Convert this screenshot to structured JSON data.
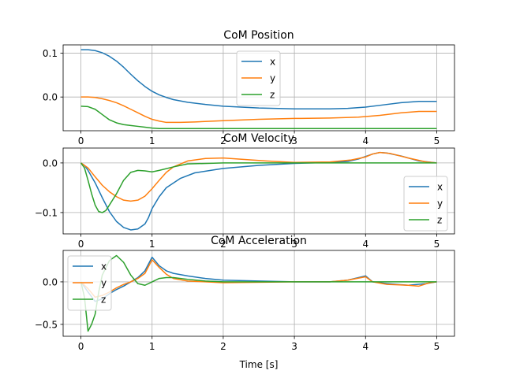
{
  "chart_data": [
    {
      "type": "line",
      "title": "CoM Position",
      "xlabel": "",
      "ylabel": "",
      "xlim": [
        -0.25,
        5.25
      ],
      "ylim": [
        -0.077,
        0.119
      ],
      "xticks": [
        0,
        1,
        2,
        3,
        4,
        5
      ],
      "yticks": [
        0.1,
        0.0
      ],
      "ytick_labels": [
        "0.1",
        "0.0"
      ],
      "grid": true,
      "legend": {
        "location": "upper-center",
        "entries": [
          "x",
          "y",
          "z"
        ]
      },
      "series": [
        {
          "name": "x",
          "color": "#1f77b4",
          "points": [
            [
              0,
              0.108
            ],
            [
              0.1,
              0.108
            ],
            [
              0.2,
              0.106
            ],
            [
              0.3,
              0.101
            ],
            [
              0.4,
              0.093
            ],
            [
              0.5,
              0.082
            ],
            [
              0.6,
              0.068
            ],
            [
              0.7,
              0.052
            ],
            [
              0.8,
              0.037
            ],
            [
              0.9,
              0.024
            ],
            [
              1.0,
              0.013
            ],
            [
              1.1,
              0.005
            ],
            [
              1.2,
              -0.001
            ],
            [
              1.3,
              -0.006
            ],
            [
              1.5,
              -0.012
            ],
            [
              1.75,
              -0.017
            ],
            [
              2.0,
              -0.021
            ],
            [
              2.5,
              -0.025
            ],
            [
              3.0,
              -0.027
            ],
            [
              3.5,
              -0.027
            ],
            [
              3.75,
              -0.026
            ],
            [
              4.0,
              -0.023
            ],
            [
              4.25,
              -0.018
            ],
            [
              4.5,
              -0.013
            ],
            [
              4.75,
              -0.01
            ],
            [
              5.0,
              -0.01
            ]
          ]
        },
        {
          "name": "y",
          "color": "#ff7f0e",
          "points": [
            [
              0,
              0.0
            ],
            [
              0.1,
              0.0
            ],
            [
              0.2,
              -0.001
            ],
            [
              0.3,
              -0.004
            ],
            [
              0.4,
              -0.008
            ],
            [
              0.5,
              -0.013
            ],
            [
              0.6,
              -0.02
            ],
            [
              0.7,
              -0.028
            ],
            [
              0.8,
              -0.036
            ],
            [
              0.9,
              -0.044
            ],
            [
              1.0,
              -0.051
            ],
            [
              1.1,
              -0.055
            ],
            [
              1.2,
              -0.058
            ],
            [
              1.4,
              -0.058
            ],
            [
              1.6,
              -0.057
            ],
            [
              2.0,
              -0.054
            ],
            [
              2.5,
              -0.051
            ],
            [
              3.0,
              -0.049
            ],
            [
              3.5,
              -0.048
            ],
            [
              3.9,
              -0.046
            ],
            [
              4.2,
              -0.042
            ],
            [
              4.5,
              -0.036
            ],
            [
              4.75,
              -0.033
            ],
            [
              5.0,
              -0.033
            ]
          ]
        },
        {
          "name": "z",
          "color": "#2ca02c",
          "points": [
            [
              0,
              -0.021
            ],
            [
              0.1,
              -0.022
            ],
            [
              0.2,
              -0.028
            ],
            [
              0.3,
              -0.04
            ],
            [
              0.4,
              -0.052
            ],
            [
              0.5,
              -0.059
            ],
            [
              0.6,
              -0.063
            ],
            [
              0.7,
              -0.065
            ],
            [
              0.8,
              -0.067
            ],
            [
              0.9,
              -0.069
            ],
            [
              1.0,
              -0.071
            ],
            [
              1.1,
              -0.072
            ],
            [
              1.2,
              -0.072
            ],
            [
              1.5,
              -0.072
            ],
            [
              2.0,
              -0.072
            ],
            [
              3.0,
              -0.072
            ],
            [
              4.0,
              -0.072
            ],
            [
              5.0,
              -0.072
            ]
          ]
        }
      ]
    },
    {
      "type": "line",
      "title": "CoM Velocity",
      "xlabel": "",
      "ylabel": "",
      "xlim": [
        -0.25,
        5.25
      ],
      "ylim": [
        -0.143,
        0.03
      ],
      "xticks": [
        0,
        1,
        2,
        3,
        4,
        5
      ],
      "yticks": [
        0.0,
        -0.1
      ],
      "ytick_labels": [
        "0.0",
        "−0.1"
      ],
      "grid": true,
      "legend": {
        "location": "lower-right",
        "entries": [
          "x",
          "y",
          "z"
        ]
      },
      "series": [
        {
          "name": "x",
          "color": "#1f77b4",
          "points": [
            [
              0,
              0.0
            ],
            [
              0.05,
              -0.005
            ],
            [
              0.1,
              -0.015
            ],
            [
              0.2,
              -0.04
            ],
            [
              0.3,
              -0.07
            ],
            [
              0.4,
              -0.098
            ],
            [
              0.5,
              -0.118
            ],
            [
              0.6,
              -0.13
            ],
            [
              0.7,
              -0.135
            ],
            [
              0.8,
              -0.133
            ],
            [
              0.9,
              -0.123
            ],
            [
              0.95,
              -0.11
            ],
            [
              1.0,
              -0.092
            ],
            [
              1.1,
              -0.068
            ],
            [
              1.2,
              -0.05
            ],
            [
              1.4,
              -0.031
            ],
            [
              1.6,
              -0.02
            ],
            [
              2.0,
              -0.011
            ],
            [
              2.5,
              -0.005
            ],
            [
              3.0,
              -0.001
            ],
            [
              3.5,
              0.001
            ],
            [
              3.75,
              0.003
            ],
            [
              3.9,
              0.008
            ],
            [
              4.0,
              0.013
            ],
            [
              4.1,
              0.018
            ],
            [
              4.2,
              0.021
            ],
            [
              4.3,
              0.02
            ],
            [
              4.5,
              0.014
            ],
            [
              4.75,
              0.004
            ],
            [
              5.0,
              0.0
            ]
          ]
        },
        {
          "name": "y",
          "color": "#ff7f0e",
          "points": [
            [
              0,
              0.0
            ],
            [
              0.1,
              -0.01
            ],
            [
              0.2,
              -0.028
            ],
            [
              0.3,
              -0.045
            ],
            [
              0.4,
              -0.058
            ],
            [
              0.5,
              -0.068
            ],
            [
              0.6,
              -0.075
            ],
            [
              0.7,
              -0.077
            ],
            [
              0.8,
              -0.075
            ],
            [
              0.9,
              -0.067
            ],
            [
              1.0,
              -0.052
            ],
            [
              1.1,
              -0.035
            ],
            [
              1.2,
              -0.019
            ],
            [
              1.3,
              -0.008
            ],
            [
              1.5,
              0.004
            ],
            [
              1.75,
              0.009
            ],
            [
              2.0,
              0.01
            ],
            [
              2.3,
              0.007
            ],
            [
              2.6,
              0.004
            ],
            [
              3.0,
              0.001
            ],
            [
              3.5,
              0.002
            ],
            [
              3.8,
              0.006
            ],
            [
              4.0,
              0.012
            ],
            [
              4.1,
              0.018
            ],
            [
              4.2,
              0.021
            ],
            [
              4.35,
              0.019
            ],
            [
              4.6,
              0.01
            ],
            [
              4.85,
              0.002
            ],
            [
              5.0,
              0.0
            ]
          ]
        },
        {
          "name": "z",
          "color": "#2ca02c",
          "points": [
            [
              0,
              0.0
            ],
            [
              0.05,
              -0.01
            ],
            [
              0.1,
              -0.035
            ],
            [
              0.15,
              -0.062
            ],
            [
              0.2,
              -0.085
            ],
            [
              0.25,
              -0.098
            ],
            [
              0.3,
              -0.1
            ],
            [
              0.35,
              -0.096
            ],
            [
              0.4,
              -0.085
            ],
            [
              0.5,
              -0.062
            ],
            [
              0.6,
              -0.035
            ],
            [
              0.7,
              -0.019
            ],
            [
              0.8,
              -0.015
            ],
            [
              0.9,
              -0.016
            ],
            [
              1.0,
              -0.018
            ],
            [
              1.1,
              -0.015
            ],
            [
              1.3,
              -0.008
            ],
            [
              1.5,
              -0.002
            ],
            [
              2.0,
              0.0
            ],
            [
              5.0,
              0.0
            ]
          ]
        }
      ]
    },
    {
      "type": "line",
      "title": "CoM Acceleration",
      "xlabel": "Time [s]",
      "ylabel": "",
      "xlim": [
        -0.25,
        5.25
      ],
      "ylim": [
        -0.64,
        0.37
      ],
      "xticks": [
        0,
        1,
        2,
        3,
        4,
        5
      ],
      "xtick_labels": [
        "0",
        "1",
        "2",
        "3",
        "4",
        "5"
      ],
      "yticks": [
        0.0,
        -0.5
      ],
      "ytick_labels": [
        "0.0",
        "−0.5"
      ],
      "grid": true,
      "legend": {
        "location": "upper-left",
        "entries": [
          "x",
          "y",
          "z"
        ]
      },
      "series": [
        {
          "name": "x",
          "color": "#1f77b4",
          "points": [
            [
              0,
              0.0
            ],
            [
              0.1,
              -0.12
            ],
            [
              0.2,
              -0.23
            ],
            [
              0.3,
              -0.2
            ],
            [
              0.4,
              -0.14
            ],
            [
              0.5,
              -0.09
            ],
            [
              0.6,
              -0.05
            ],
            [
              0.7,
              0.0
            ],
            [
              0.8,
              0.05
            ],
            [
              0.9,
              0.13
            ],
            [
              1.0,
              0.29
            ],
            [
              1.1,
              0.19
            ],
            [
              1.2,
              0.13
            ],
            [
              1.3,
              0.1
            ],
            [
              1.5,
              0.07
            ],
            [
              1.75,
              0.04
            ],
            [
              2.0,
              0.02
            ],
            [
              2.5,
              0.01
            ],
            [
              3.0,
              0.0
            ],
            [
              3.5,
              0.0
            ],
            [
              3.75,
              0.02
            ],
            [
              4.0,
              0.07
            ],
            [
              4.1,
              0.0
            ],
            [
              4.3,
              -0.02
            ],
            [
              4.6,
              -0.04
            ],
            [
              4.85,
              -0.02
            ],
            [
              5.0,
              0.0
            ]
          ]
        },
        {
          "name": "y",
          "color": "#ff7f0e",
          "points": [
            [
              0,
              0.0
            ],
            [
              0.1,
              -0.08
            ],
            [
              0.2,
              -0.18
            ],
            [
              0.3,
              -0.16
            ],
            [
              0.4,
              -0.12
            ],
            [
              0.5,
              -0.07
            ],
            [
              0.6,
              -0.03
            ],
            [
              0.7,
              0.0
            ],
            [
              0.8,
              0.04
            ],
            [
              0.9,
              0.1
            ],
            [
              1.0,
              0.26
            ],
            [
              1.1,
              0.17
            ],
            [
              1.2,
              0.09
            ],
            [
              1.3,
              0.04
            ],
            [
              1.5,
              0.01
            ],
            [
              1.75,
              0.0
            ],
            [
              2.0,
              -0.01
            ],
            [
              3.0,
              0.0
            ],
            [
              3.5,
              0.0
            ],
            [
              3.75,
              0.02
            ],
            [
              4.0,
              0.06
            ],
            [
              4.1,
              0.0
            ],
            [
              4.3,
              -0.03
            ],
            [
              4.6,
              -0.04
            ],
            [
              4.75,
              -0.05
            ],
            [
              4.9,
              -0.01
            ],
            [
              5.0,
              0.0
            ]
          ]
        },
        {
          "name": "z",
          "color": "#2ca02c",
          "points": [
            [
              0,
              0.0
            ],
            [
              0.05,
              -0.18
            ],
            [
              0.1,
              -0.58
            ],
            [
              0.15,
              -0.5
            ],
            [
              0.2,
              -0.38
            ],
            [
              0.25,
              -0.12
            ],
            [
              0.3,
              0.08
            ],
            [
              0.4,
              0.25
            ],
            [
              0.5,
              0.31
            ],
            [
              0.6,
              0.23
            ],
            [
              0.7,
              0.08
            ],
            [
              0.8,
              -0.02
            ],
            [
              0.9,
              -0.04
            ],
            [
              1.0,
              0.0
            ],
            [
              1.1,
              0.04
            ],
            [
              1.2,
              0.05
            ],
            [
              1.3,
              0.05
            ],
            [
              1.5,
              0.03
            ],
            [
              1.75,
              0.01
            ],
            [
              2.0,
              0.0
            ],
            [
              5.0,
              0.0
            ]
          ]
        }
      ]
    }
  ]
}
